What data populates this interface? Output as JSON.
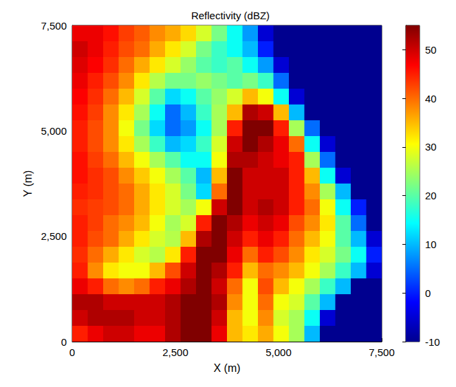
{
  "chart_data": {
    "type": "heatmap",
    "title": "Reflectivity (dBZ)",
    "x_label": "X (m)",
    "y_label": "Y (m)",
    "xlim": [
      0,
      7500
    ],
    "ylim": [
      0,
      7500
    ],
    "xticks": [
      0,
      2500,
      5000,
      7500
    ],
    "yticks": [
      0,
      2500,
      5000,
      7500
    ],
    "x": [
      187.5,
      562.5,
      937.5,
      1312.5,
      1687.5,
      2062.5,
      2437.5,
      2812.5,
      3187.5,
      3562.5,
      3937.5,
      4312.5,
      4687.5,
      5062.5,
      5437.5,
      5812.5,
      6187.5,
      6562.5,
      6937.5,
      7312.5
    ],
    "y": [
      7312.5,
      6937.5,
      6562.5,
      6187.5,
      5812.5,
      5437.5,
      5062.5,
      4687.5,
      4312.5,
      3937.5,
      3562.5,
      3187.5,
      2812.5,
      2437.5,
      2062.5,
      1687.5,
      1312.5,
      937.5,
      562.5,
      187.5
    ],
    "cells": [
      [
        48,
        48,
        46,
        43,
        41,
        38,
        36,
        33,
        28,
        22,
        15,
        8,
        -5,
        -10,
        -10,
        -10,
        -10,
        -10,
        -10,
        -10
      ],
      [
        50,
        48,
        45,
        42,
        40,
        36,
        32,
        28,
        22,
        18,
        15,
        10,
        0,
        -10,
        -10,
        -10,
        -10,
        -10,
        -10,
        -10
      ],
      [
        49,
        47,
        44,
        40,
        36,
        32,
        28,
        24,
        20,
        18,
        20,
        15,
        8,
        -5,
        -10,
        -10,
        -10,
        -10,
        -10,
        -10
      ],
      [
        48,
        45,
        42,
        38,
        32,
        26,
        22,
        22,
        24,
        22,
        20,
        22,
        18,
        5,
        -10,
        -10,
        -10,
        -10,
        -10,
        -10
      ],
      [
        47,
        44,
        40,
        35,
        28,
        20,
        12,
        15,
        20,
        24,
        28,
        35,
        30,
        15,
        -5,
        -10,
        -10,
        -10,
        -10,
        -10
      ],
      [
        46,
        43,
        38,
        32,
        25,
        15,
        5,
        10,
        18,
        25,
        35,
        52,
        50,
        35,
        10,
        -10,
        -10,
        -10,
        -10,
        -10
      ],
      [
        45,
        42,
        38,
        30,
        22,
        12,
        5,
        8,
        15,
        25,
        45,
        55,
        55,
        45,
        25,
        5,
        -10,
        -10,
        -10,
        -10
      ],
      [
        45,
        42,
        38,
        32,
        25,
        18,
        10,
        12,
        18,
        28,
        50,
        55,
        52,
        48,
        40,
        15,
        -5,
        -10,
        -10,
        -10
      ],
      [
        46,
        43,
        40,
        35,
        30,
        25,
        20,
        15,
        15,
        30,
        52,
        52,
        50,
        48,
        45,
        25,
        5,
        -10,
        -10,
        -10
      ],
      [
        46,
        44,
        42,
        38,
        34,
        30,
        25,
        20,
        10,
        35,
        55,
        50,
        50,
        50,
        45,
        35,
        15,
        -5,
        -10,
        -10
      ],
      [
        45,
        44,
        42,
        40,
        36,
        32,
        28,
        22,
        12,
        40,
        55,
        50,
        50,
        50,
        45,
        38,
        25,
        10,
        -10,
        -10
      ],
      [
        44,
        43,
        42,
        40,
        36,
        32,
        28,
        25,
        30,
        50,
        55,
        50,
        52,
        50,
        45,
        40,
        30,
        15,
        0,
        -10
      ],
      [
        45,
        43,
        40,
        38,
        35,
        30,
        25,
        28,
        45,
        55,
        52,
        48,
        50,
        48,
        42,
        38,
        32,
        20,
        5,
        -10
      ],
      [
        45,
        42,
        40,
        36,
        32,
        28,
        26,
        35,
        52,
        55,
        50,
        45,
        48,
        45,
        40,
        35,
        30,
        20,
        10,
        -5
      ],
      [
        44,
        40,
        36,
        32,
        28,
        26,
        32,
        45,
        55,
        55,
        48,
        40,
        45,
        42,
        38,
        32,
        28,
        22,
        15,
        0
      ],
      [
        45,
        38,
        32,
        30,
        30,
        35,
        42,
        50,
        55,
        52,
        45,
        35,
        40,
        38,
        35,
        30,
        25,
        18,
        10,
        -5
      ],
      [
        48,
        45,
        40,
        38,
        40,
        45,
        48,
        52,
        55,
        50,
        40,
        30,
        42,
        35,
        30,
        25,
        18,
        10,
        -10,
        -10
      ],
      [
        52,
        52,
        50,
        50,
        50,
        50,
        52,
        55,
        55,
        52,
        38,
        30,
        40,
        30,
        28,
        20,
        10,
        -10,
        -10,
        -10
      ],
      [
        50,
        52,
        52,
        52,
        50,
        50,
        52,
        55,
        55,
        50,
        35,
        30,
        38,
        28,
        25,
        15,
        -5,
        -10,
        -10,
        -10
      ],
      [
        45,
        48,
        50,
        50,
        48,
        48,
        52,
        55,
        55,
        48,
        35,
        32,
        36,
        30,
        25,
        10,
        -10,
        -10,
        -10,
        -10
      ]
    ],
    "colorbar": {
      "range": [
        -10,
        55
      ],
      "ticks": [
        -10,
        0,
        10,
        20,
        30,
        40,
        50
      ]
    }
  }
}
